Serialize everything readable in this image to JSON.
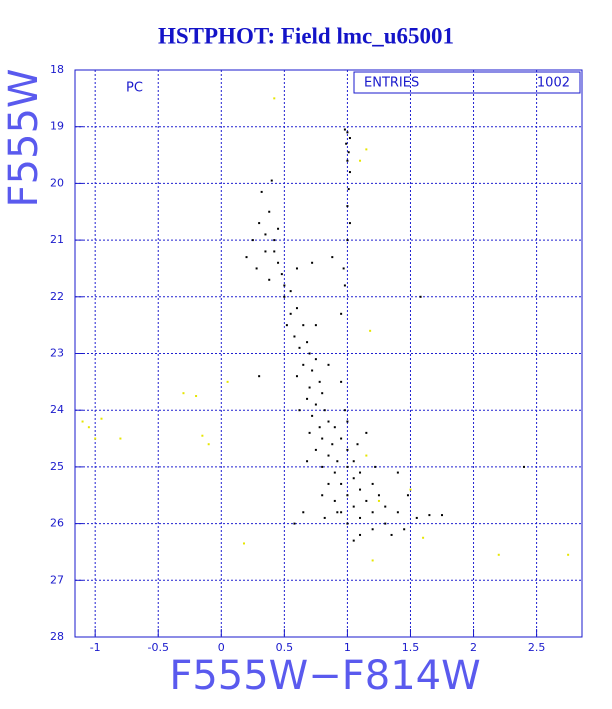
{
  "chart_data": {
    "type": "scatter",
    "title": "HSTPHOT: Field lmc_u65001",
    "x_label": "F555W−F814W",
    "y_label": "F555W",
    "annotation": "PC",
    "stats": {
      "label": "ENTRIES",
      "value": 1002
    },
    "xlim": [
      -1.16,
      2.86
    ],
    "ylim": [
      28,
      18
    ],
    "xticks": [
      -1,
      -0.5,
      0,
      0.5,
      1,
      1.5,
      2,
      2.5
    ],
    "yticks": [
      18,
      19,
      20,
      21,
      22,
      23,
      24,
      25,
      26,
      27,
      28
    ],
    "grid": true,
    "series": [
      {
        "color": "#000000",
        "x": [
          0.98,
          1.0,
          1.02,
          0.99,
          1.01,
          1.0,
          1.02,
          1.01,
          1.0,
          1.02,
          1.0,
          0.97,
          0.98,
          0.32,
          0.4,
          0.38,
          0.3,
          0.25,
          0.35,
          0.42,
          0.2,
          0.28,
          0.45,
          0.38,
          0.48,
          0.55,
          0.5,
          0.6,
          0.42,
          0.5,
          0.55,
          0.6,
          0.52,
          0.58,
          0.65,
          0.62,
          0.68,
          0.7,
          0.65,
          0.72,
          0.75,
          0.6,
          0.7,
          0.78,
          0.8,
          0.68,
          0.75,
          0.82,
          0.72,
          0.85,
          0.78,
          0.9,
          0.7,
          0.8,
          0.88,
          0.95,
          0.75,
          0.85,
          0.92,
          1.0,
          0.8,
          0.9,
          1.0,
          1.05,
          0.85,
          0.95,
          1.05,
          1.1,
          0.8,
          0.9,
          1.0,
          1.1,
          1.2,
          0.95,
          1.05,
          1.15,
          1.25,
          1.0,
          1.1,
          1.2,
          1.3,
          1.4,
          1.1,
          1.2,
          1.3,
          1.45,
          1.55,
          1.65,
          1.35,
          0.65,
          0.72,
          0.88,
          0.3,
          0.95,
          1.58,
          2.4,
          1.75,
          0.58,
          0.82,
          0.68,
          1.15,
          1.0,
          0.95,
          0.85,
          0.62,
          1.4,
          1.48,
          0.75,
          0.45,
          0.35,
          0.92,
          1.05,
          0.98,
          1.08,
          1.22
        ],
        "y": [
          19.05,
          19.1,
          19.2,
          19.3,
          19.45,
          19.6,
          19.8,
          20.1,
          20.4,
          20.7,
          21.0,
          21.5,
          21.8,
          20.15,
          19.95,
          20.5,
          20.7,
          21.0,
          20.9,
          21.2,
          21.3,
          21.5,
          21.4,
          21.7,
          21.6,
          21.9,
          21.8,
          21.5,
          21.0,
          22.0,
          22.3,
          22.2,
          22.5,
          22.7,
          22.5,
          22.9,
          22.8,
          23.0,
          23.2,
          23.3,
          23.1,
          23.4,
          23.6,
          23.5,
          23.7,
          23.8,
          23.9,
          24.0,
          24.1,
          24.2,
          24.3,
          24.3,
          24.4,
          24.5,
          24.6,
          24.5,
          24.7,
          24.8,
          24.9,
          24.7,
          25.0,
          25.1,
          25.0,
          24.9,
          25.3,
          25.3,
          25.2,
          25.1,
          25.5,
          25.6,
          25.5,
          25.4,
          25.3,
          25.8,
          25.7,
          25.6,
          25.5,
          26.0,
          25.9,
          25.8,
          25.7,
          25.8,
          26.2,
          26.1,
          26.0,
          26.1,
          25.9,
          25.85,
          26.2,
          25.8,
          21.4,
          21.3,
          23.4,
          22.3,
          22.0,
          25.0,
          25.85,
          26.0,
          25.9,
          24.9,
          24.4,
          24.2,
          23.5,
          23.2,
          24.0,
          25.1,
          25.5,
          22.5,
          20.8,
          21.2,
          25.8,
          26.3,
          24.0,
          24.6,
          25.0
        ]
      },
      {
        "color": "#e6e600",
        "x": [
          0.42,
          1.15,
          1.1,
          1.18,
          -0.3,
          -0.2,
          0.05,
          -1.05,
          -0.95,
          -0.8,
          -1.0,
          -0.15,
          -0.1,
          0.18,
          1.6,
          2.2,
          2.75,
          1.2,
          1.5,
          1.15,
          1.25,
          -1.1
        ],
        "y": [
          18.5,
          19.4,
          19.6,
          22.6,
          23.7,
          23.75,
          23.5,
          24.3,
          24.15,
          24.5,
          24.5,
          24.45,
          24.6,
          26.35,
          26.25,
          26.55,
          26.55,
          26.65,
          25.4,
          24.8,
          25.6,
          24.2
        ]
      }
    ]
  }
}
